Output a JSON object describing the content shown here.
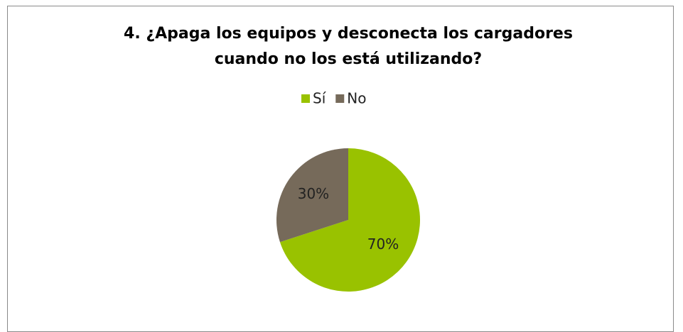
{
  "chart_data": {
    "type": "pie",
    "title": "4. ¿Apaga los equipos y desconecta los cargadores cuando no los está utilizando?",
    "categories": [
      "Sí",
      "No"
    ],
    "values": [
      70,
      30
    ],
    "value_labels": [
      "70%",
      "30%"
    ],
    "colors": [
      "#99c200",
      "#766a5a"
    ],
    "legend": "top"
  }
}
